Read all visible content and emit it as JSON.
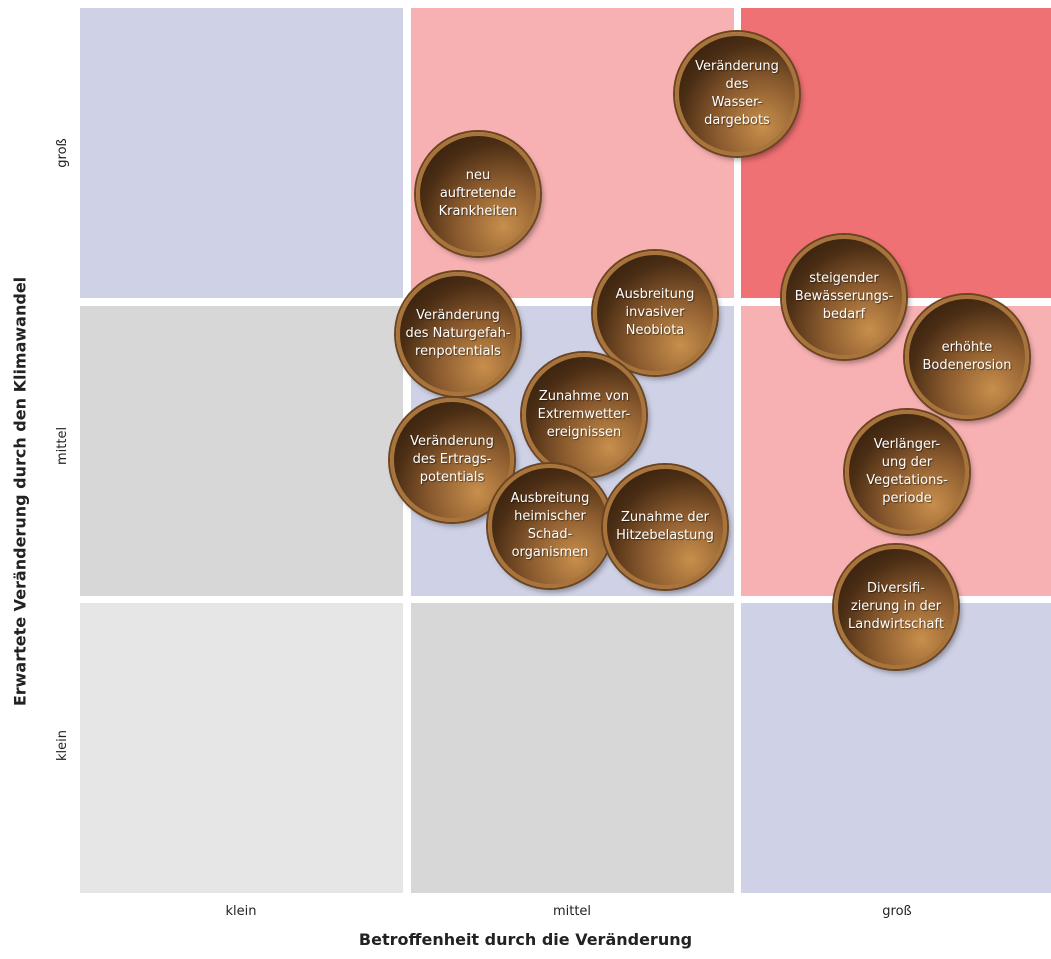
{
  "x_axis": {
    "label": "Betroffenheit durch die Veränderung",
    "ticks": [
      "klein",
      "mittel",
      "groß"
    ]
  },
  "y_axis": {
    "label": "Erwartete Veränderung durch den Klimawandel",
    "ticks": [
      "groß",
      "mittel",
      "klein"
    ]
  },
  "colors": {
    "blue": "#cfd1e6",
    "grey_light": "#e6e6e6",
    "grey": "#d7d7d7",
    "pink": "#f8b1b2",
    "red": "#f07173"
  },
  "grid": [
    [
      "blue",
      "pink",
      "red"
    ],
    [
      "grey",
      "blue",
      "pink"
    ],
    [
      "grey_light",
      "grey",
      "blue"
    ]
  ],
  "bubbles": [
    {
      "text": "Veränderung\ndes\nWasser-\ndargebots"
    },
    {
      "text": "neu\nauftretende\nKrankheiten"
    },
    {
      "text": "Ausbreitung\ninvasiver\nNeobiota"
    },
    {
      "text": "Veränderung\ndes Naturgefah-\nrenpotentials"
    },
    {
      "text": "steigender\nBewässerungs-\nbedarf"
    },
    {
      "text": "erhöhte\nBodenerosion"
    },
    {
      "text": "Zunahme von\nExtremwetter-\nereignissen"
    },
    {
      "text": "Veränderung\ndes Ertrags-\npotentials"
    },
    {
      "text": "Verlänger-\nung der\nVegetations-\nperiode"
    },
    {
      "text": "Ausbreitung\nheimischer\nSchad-\norganismen"
    },
    {
      "text": "Zunahme der\nHitzebelastung"
    },
    {
      "text": "Diversifi-\nzierung in der\nLandwirtschaft"
    }
  ]
}
